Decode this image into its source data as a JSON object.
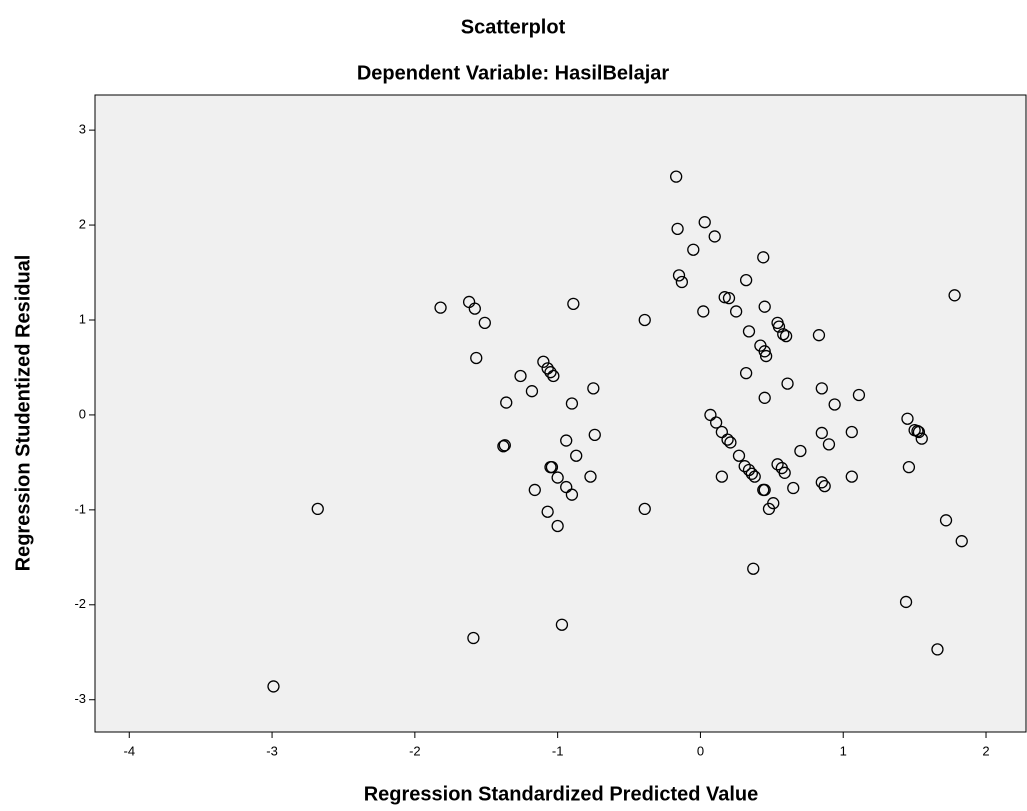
{
  "chart_data": {
    "type": "scatter",
    "title": "Scatterplot",
    "subtitle": "Dependent Variable: HasilBelajar",
    "x_label": "Regression Standardized Predicted Value",
    "y_label": "Regression Studentized Residual",
    "xlim": [
      -4.24,
      2.28
    ],
    "ylim": [
      -3.34,
      3.37
    ],
    "xticks": [
      -4,
      -3,
      -2,
      -1,
      0,
      1,
      2
    ],
    "yticks": [
      -3,
      -2,
      -1,
      0,
      1,
      2,
      3
    ],
    "background": "#f0f0f0",
    "series": [
      {
        "color": "#000000",
        "x": [
          -2.99,
          -2.68,
          -1.82,
          -1.62,
          -1.58,
          -1.51,
          -1.57,
          -1.59,
          -1.38,
          -1.37,
          -1.36,
          -1.26,
          -1.18,
          -1.16,
          -1.1,
          -1.07,
          -1.05,
          -1.03,
          -1.07,
          -1.05,
          -1.04,
          -1.0,
          -1.0,
          -0.97,
          -0.94,
          -0.94,
          -0.9,
          -0.9,
          -0.89,
          -0.87,
          -0.77,
          -0.75,
          -0.74,
          -0.39,
          -0.39,
          -0.17,
          -0.16,
          -0.15,
          -0.13,
          -0.05,
          0.03,
          0.02,
          0.1,
          0.07,
          0.11,
          0.15,
          0.15,
          0.17,
          0.2,
          0.19,
          0.21,
          0.25,
          0.27,
          0.31,
          0.32,
          0.32,
          0.34,
          0.34,
          0.36,
          0.38,
          0.37,
          0.44,
          0.42,
          0.45,
          0.46,
          0.45,
          0.44,
          0.45,
          0.45,
          0.48,
          0.51,
          0.54,
          0.55,
          0.58,
          0.6,
          0.54,
          0.57,
          0.59,
          0.61,
          0.65,
          0.7,
          0.83,
          0.85,
          0.85,
          0.85,
          0.87,
          0.9,
          0.94,
          1.06,
          1.06,
          1.11,
          1.44,
          1.45,
          1.46,
          1.5,
          1.52,
          1.53,
          1.55,
          1.66,
          1.72,
          1.78,
          1.83
        ],
        "values": [
          -2.86,
          -0.99,
          1.13,
          1.19,
          1.12,
          0.97,
          0.6,
          -2.35,
          -0.33,
          -0.32,
          0.13,
          0.41,
          0.25,
          -0.79,
          0.56,
          0.49,
          0.45,
          0.41,
          -1.02,
          -0.55,
          -0.55,
          -0.66,
          -1.17,
          -2.21,
          -0.27,
          -0.76,
          -0.84,
          0.12,
          1.17,
          -0.43,
          -0.65,
          0.28,
          -0.21,
          1.0,
          -0.99,
          2.51,
          1.96,
          1.47,
          1.4,
          1.74,
          2.03,
          1.09,
          1.88,
          0.0,
          -0.08,
          -0.65,
          -0.18,
          1.24,
          1.23,
          -0.26,
          -0.29,
          1.09,
          -0.43,
          -0.54,
          0.44,
          1.42,
          -0.58,
          0.88,
          -0.62,
          -0.65,
          -1.62,
          1.66,
          0.73,
          0.67,
          0.62,
          -0.79,
          -0.79,
          1.14,
          0.18,
          -0.99,
          -0.93,
          0.97,
          0.93,
          0.85,
          0.83,
          -0.52,
          -0.56,
          -0.61,
          0.33,
          -0.77,
          -0.38,
          0.84,
          -0.19,
          0.28,
          -0.71,
          -0.75,
          -0.31,
          0.11,
          -0.65,
          -0.18,
          0.21,
          -1.97,
          -0.04,
          -0.55,
          -0.16,
          -0.17,
          -0.18,
          -0.25,
          -2.47,
          -1.11,
          1.26,
          -1.33
        ]
      }
    ]
  }
}
